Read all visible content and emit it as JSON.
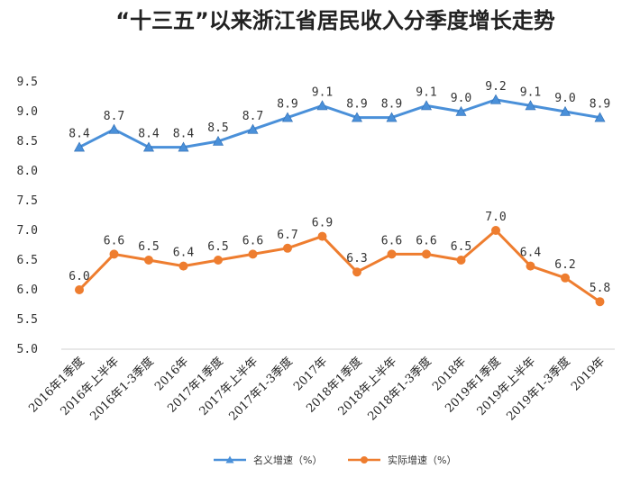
{
  "chart_data": {
    "type": "line",
    "title": "“十三五”以来浙江省居民收入分季度增长走势",
    "xlabel": "",
    "ylabel": "",
    "ylim": [
      5.0,
      9.5
    ],
    "yticks": [
      "5.0",
      "5.5",
      "6.0",
      "6.5",
      "7.0",
      "7.5",
      "8.0",
      "8.5",
      "9.0",
      "9.5"
    ],
    "grid": false,
    "legend_position": "bottom",
    "categories": [
      "2016年1季度",
      "2016年上半年",
      "2016年1-3季度",
      "2016年",
      "2017年1季度",
      "2017年上半年",
      "2017年1-3季度",
      "2017年",
      "2018年1季度",
      "2018年上半年",
      "2018年1-3季度",
      "2018年",
      "2019年1季度",
      "2019年上半年",
      "2019年1-3季度",
      "2019年"
    ],
    "series": [
      {
        "name": "名义增速（%）",
        "color": "#4a90d9",
        "marker": "triangle",
        "values": [
          8.4,
          8.7,
          8.4,
          8.4,
          8.5,
          8.7,
          8.9,
          9.1,
          8.9,
          8.9,
          9.1,
          9.0,
          9.2,
          9.1,
          9.0,
          8.9
        ],
        "labels": [
          "8.4",
          "8.7",
          "8.4",
          "8.4",
          "8.5",
          "8.7",
          "8.9",
          "9.1",
          "8.9",
          "8.9",
          "9.1",
          "9.0",
          "9.2",
          "9.1",
          "9.0",
          "8.9"
        ]
      },
      {
        "name": "实际增速（%）",
        "color": "#ee7d2f",
        "marker": "circle",
        "values": [
          6.0,
          6.6,
          6.5,
          6.4,
          6.5,
          6.6,
          6.7,
          6.9,
          6.3,
          6.6,
          6.6,
          6.5,
          7.0,
          6.4,
          6.2,
          5.8
        ],
        "labels": [
          "6.0",
          "6.6",
          "6.5",
          "6.4",
          "6.5",
          "6.6",
          "6.7",
          "6.9",
          "6.3",
          "6.6",
          "6.6",
          "6.5",
          "7.0",
          "6.4",
          "6.2",
          "5.8"
        ]
      }
    ]
  }
}
